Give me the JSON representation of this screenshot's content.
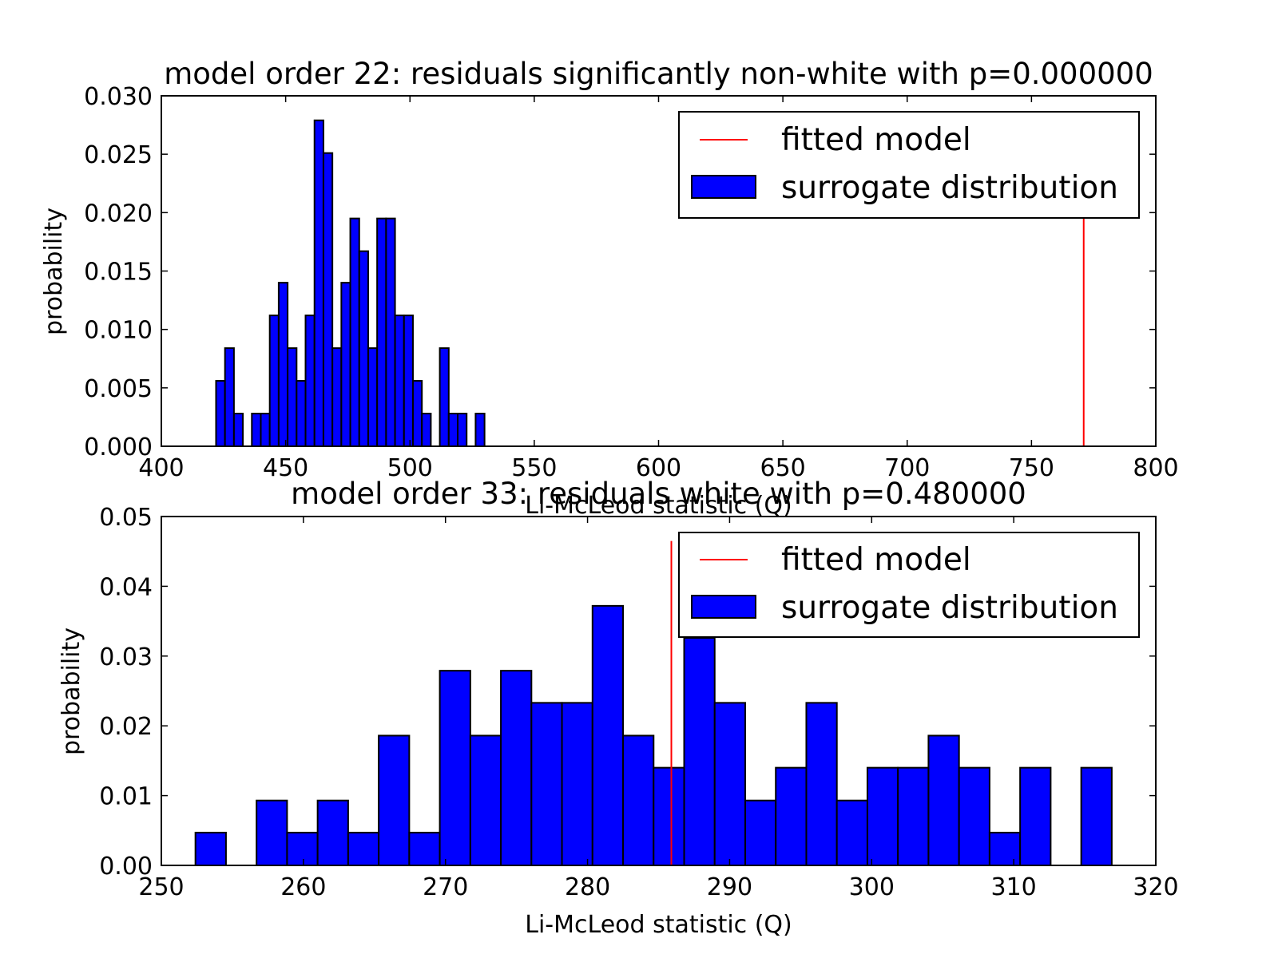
{
  "chart_data": [
    {
      "type": "bar",
      "title": "model order 22: residuals significantly non-white with p=0.000000",
      "xlabel": "Li-McLeod statistic (Q)",
      "ylabel": "probability",
      "xlim": [
        400,
        800
      ],
      "ylim": [
        0,
        0.03
      ],
      "xticks": [
        "400",
        "450",
        "500",
        "550",
        "600",
        "650",
        "700",
        "750",
        "800"
      ],
      "yticks": [
        "0.000",
        "0.005",
        "0.010",
        "0.015",
        "0.020",
        "0.025",
        "0.030"
      ],
      "bin_width": 3.6,
      "series": [
        {
          "name": "surrogate distribution",
          "color": "#0000ff",
          "bins": [
            [
              422.0,
              0.0056
            ],
            [
              425.6,
              0.0084
            ],
            [
              429.2,
              0.0028
            ],
            [
              436.4,
              0.0028
            ],
            [
              440.0,
              0.0028
            ],
            [
              443.6,
              0.0112
            ],
            [
              447.2,
              0.014
            ],
            [
              450.8,
              0.0084
            ],
            [
              454.4,
              0.0056
            ],
            [
              458.0,
              0.0112
            ],
            [
              461.6,
              0.0279
            ],
            [
              465.2,
              0.0251
            ],
            [
              468.8,
              0.0084
            ],
            [
              472.4,
              0.014
            ],
            [
              476.0,
              0.0195
            ],
            [
              479.6,
              0.0167
            ],
            [
              483.2,
              0.0084
            ],
            [
              486.8,
              0.0195
            ],
            [
              490.4,
              0.0195
            ],
            [
              494.0,
              0.0112
            ],
            [
              497.6,
              0.0112
            ],
            [
              501.2,
              0.0056
            ],
            [
              504.8,
              0.0028
            ],
            [
              512.0,
              0.0084
            ],
            [
              515.6,
              0.0028
            ],
            [
              519.2,
              0.0028
            ],
            [
              526.4,
              0.0028
            ]
          ]
        },
        {
          "name": "fitted model",
          "color": "#ff0000",
          "x": 771,
          "y_top": 0.0197
        }
      ],
      "legend": {
        "position": "top-right",
        "entries": [
          "fitted model",
          "surrogate distribution"
        ]
      }
    },
    {
      "type": "bar",
      "title": "model order 33: residuals white with p=0.480000",
      "xlabel": "Li-McLeod statistic (Q)",
      "ylabel": "probability",
      "xlim": [
        250,
        320
      ],
      "ylim": [
        0,
        0.05
      ],
      "xticks": [
        "250",
        "260",
        "270",
        "280",
        "290",
        "300",
        "310",
        "320"
      ],
      "yticks": [
        "0.00",
        "0.01",
        "0.02",
        "0.03",
        "0.04",
        "0.05"
      ],
      "bin_width": 2.15,
      "series": [
        {
          "name": "surrogate distribution",
          "color": "#0000ff",
          "bins": [
            [
              252.4,
              0.0047
            ],
            [
              256.7,
              0.0093
            ],
            [
              258.85,
              0.0047
            ],
            [
              261.0,
              0.0093
            ],
            [
              263.15,
              0.0047
            ],
            [
              265.3,
              0.0186
            ],
            [
              267.45,
              0.0047
            ],
            [
              269.6,
              0.0279
            ],
            [
              271.75,
              0.0186
            ],
            [
              273.9,
              0.0279
            ],
            [
              276.05,
              0.0233
            ],
            [
              278.2,
              0.0233
            ],
            [
              280.35,
              0.0372
            ],
            [
              282.5,
              0.0186
            ],
            [
              284.65,
              0.014
            ],
            [
              286.8,
              0.0326
            ],
            [
              288.95,
              0.0233
            ],
            [
              291.1,
              0.0093
            ],
            [
              293.25,
              0.014
            ],
            [
              295.4,
              0.0233
            ],
            [
              297.55,
              0.0093
            ],
            [
              299.7,
              0.014
            ],
            [
              301.85,
              0.014
            ],
            [
              304.0,
              0.0186
            ],
            [
              306.15,
              0.014
            ],
            [
              308.3,
              0.0047
            ],
            [
              310.45,
              0.014
            ],
            [
              314.75,
              0.014
            ]
          ]
        },
        {
          "name": "fitted model",
          "color": "#ff0000",
          "x": 285.9,
          "y_top": 0.0465
        }
      ],
      "legend": {
        "position": "top-right",
        "entries": [
          "fitted model",
          "surrogate distribution"
        ]
      }
    }
  ]
}
